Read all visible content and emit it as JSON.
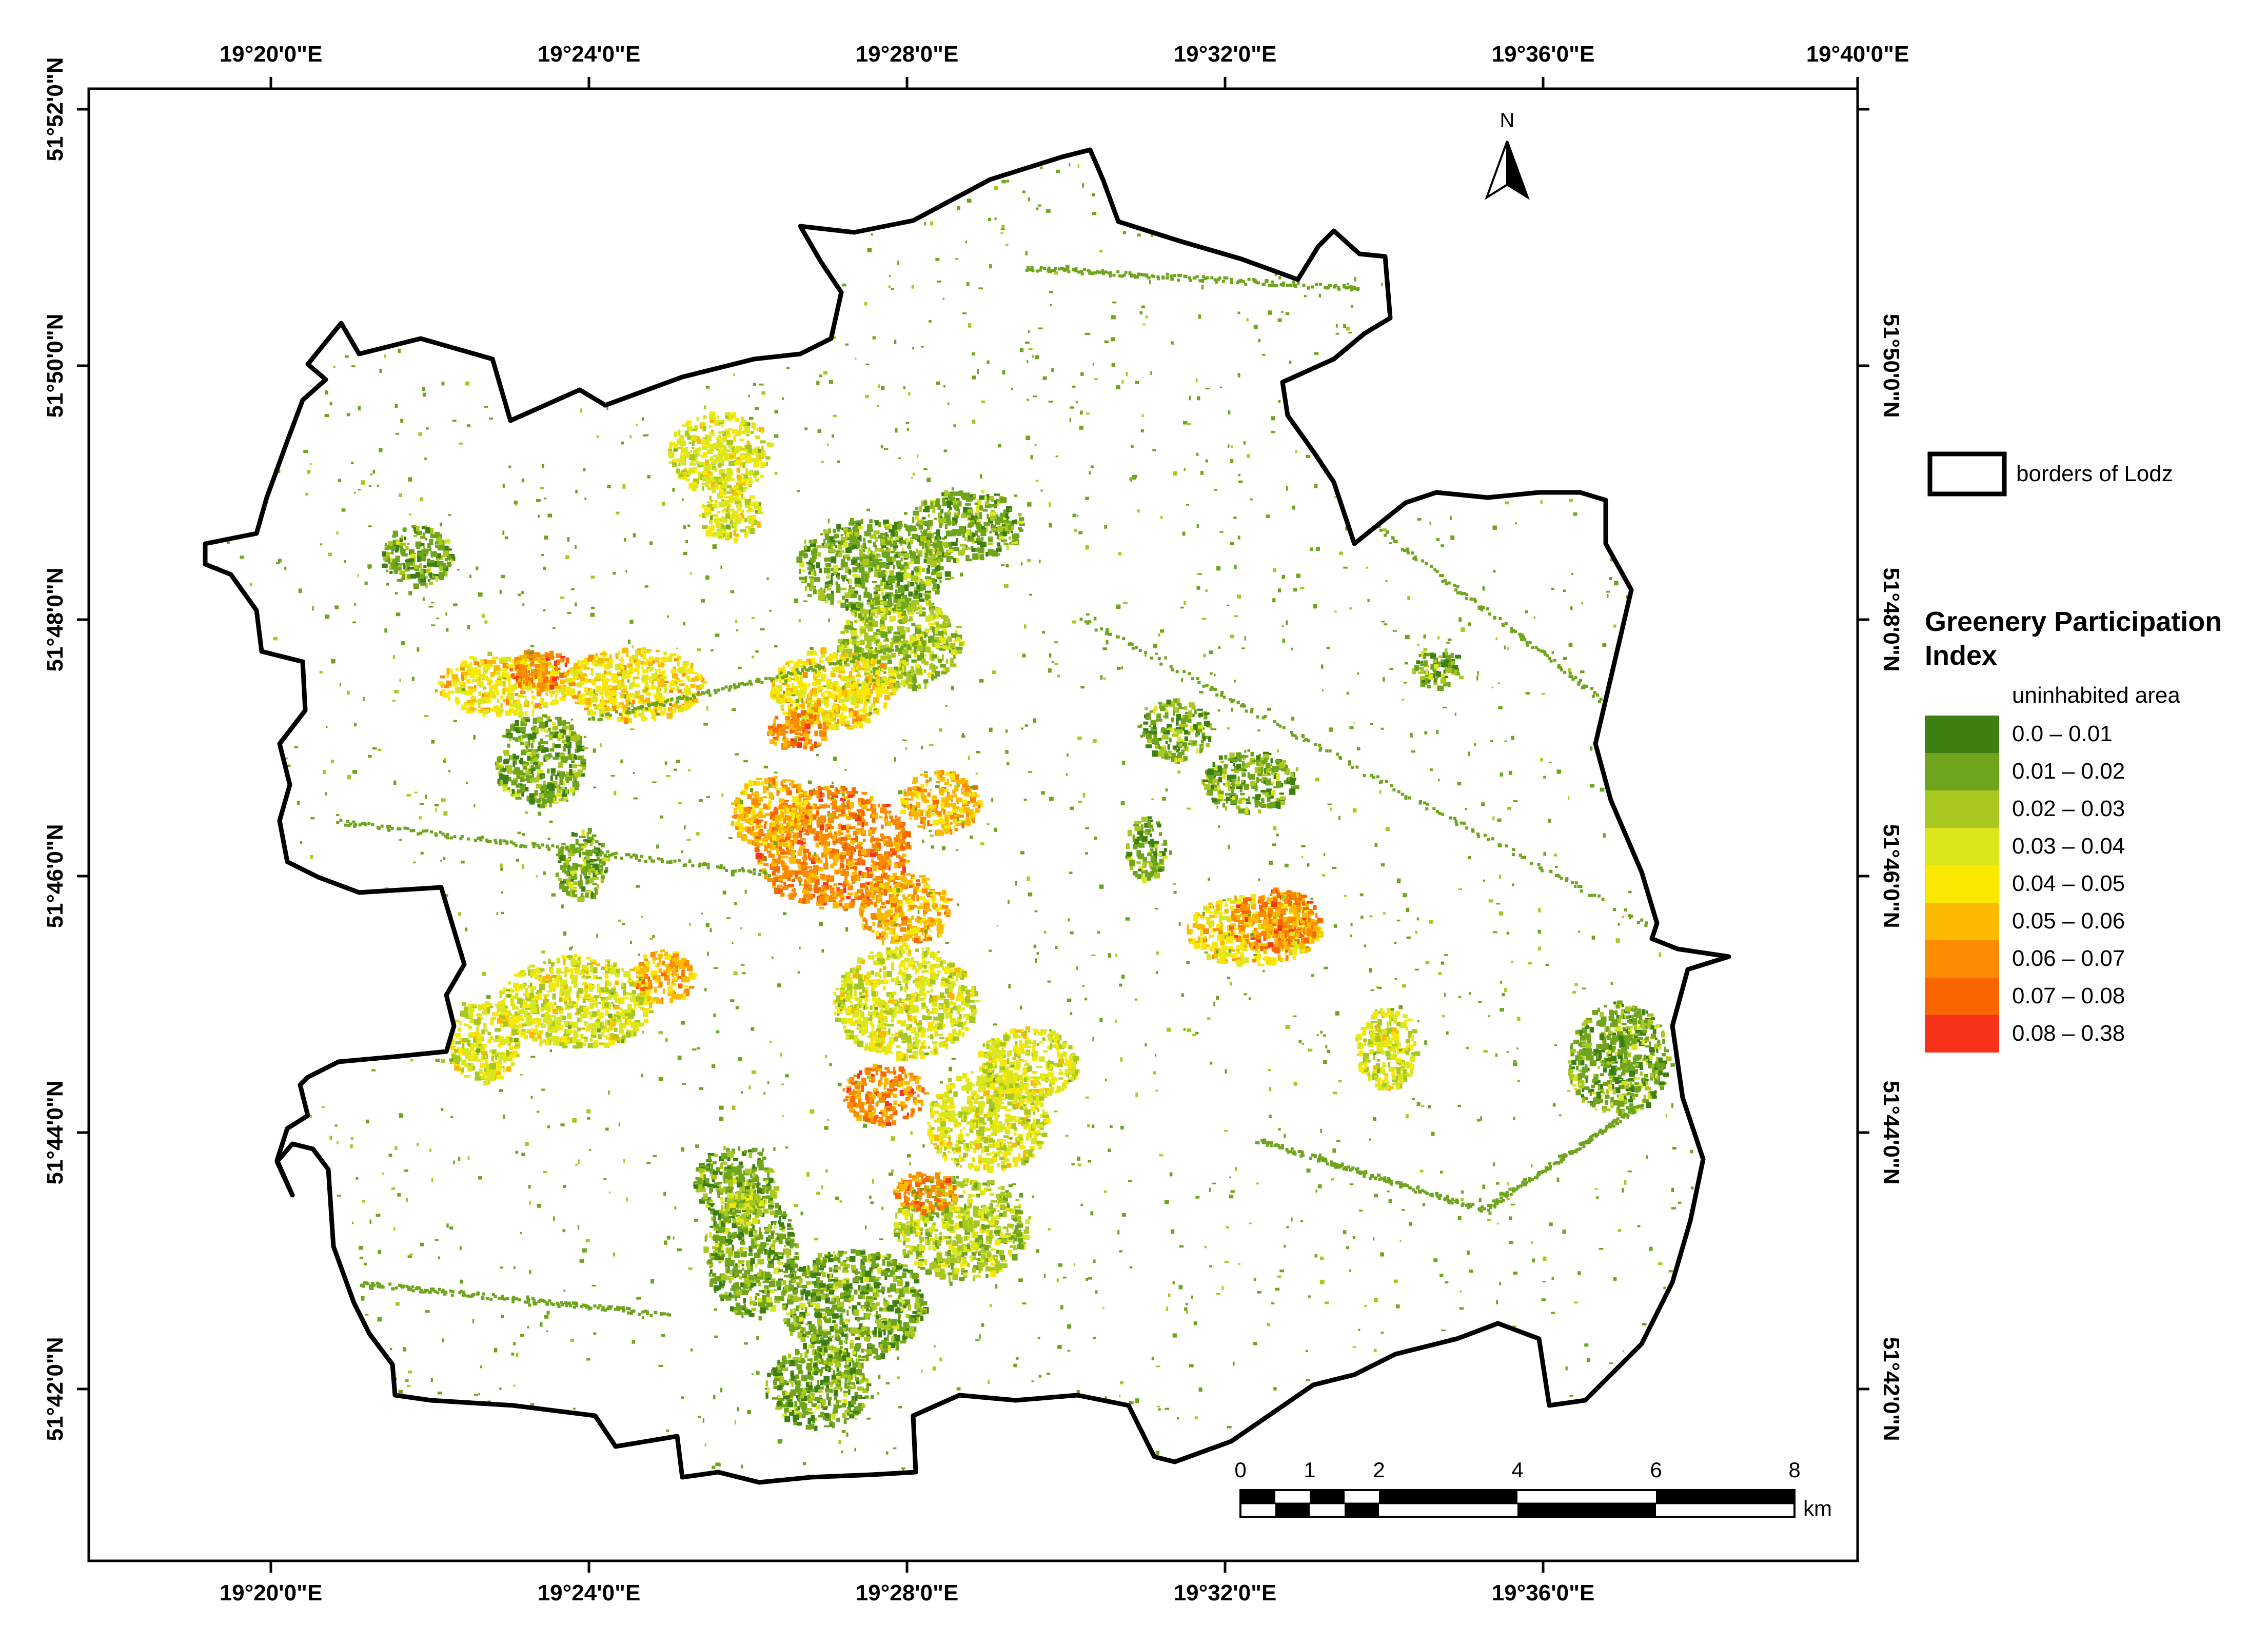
{
  "map": {
    "lon_labels": [
      "19°20'0\"E",
      "19°24'0\"E",
      "19°28'0\"E",
      "19°32'0\"E",
      "19°36'0\"E",
      "19°40'0\"E"
    ],
    "lat_labels": [
      "51°52'0\"N",
      "51°50'0\"N",
      "51°48'0\"N",
      "51°46'0\"N",
      "51°44'0\"N",
      "51°42'0\"N"
    ],
    "north_label": "N",
    "boundary_color": "#000000"
  },
  "legend": {
    "boundary_label": "borders of Lodz",
    "title_line1": "Greenery Participation",
    "title_line2": "Index",
    "uninhabited_label": "uninhabited area",
    "classes": [
      {
        "label": "0.0 – 0.01",
        "color": "#3e7f11"
      },
      {
        "label": "0.01 – 0.02",
        "color": "#6fa51c"
      },
      {
        "label": "0.02 – 0.03",
        "color": "#a9c81f"
      },
      {
        "label": "0.03 – 0.04",
        "color": "#dbe61c"
      },
      {
        "label": "0.04 – 0.05",
        "color": "#fbe800"
      },
      {
        "label": "0.05 – 0.06",
        "color": "#fbba00"
      },
      {
        "label": "0.06 – 0.07",
        "color": "#fb8b00"
      },
      {
        "label": "0.07 – 0.08",
        "color": "#f96600"
      },
      {
        "label": "0.08 – 0.38",
        "color": "#f7321b"
      }
    ]
  },
  "scale_bar": {
    "ticks": [
      "0",
      "1",
      "2",
      "4",
      "6",
      "8"
    ],
    "unit": "km"
  }
}
